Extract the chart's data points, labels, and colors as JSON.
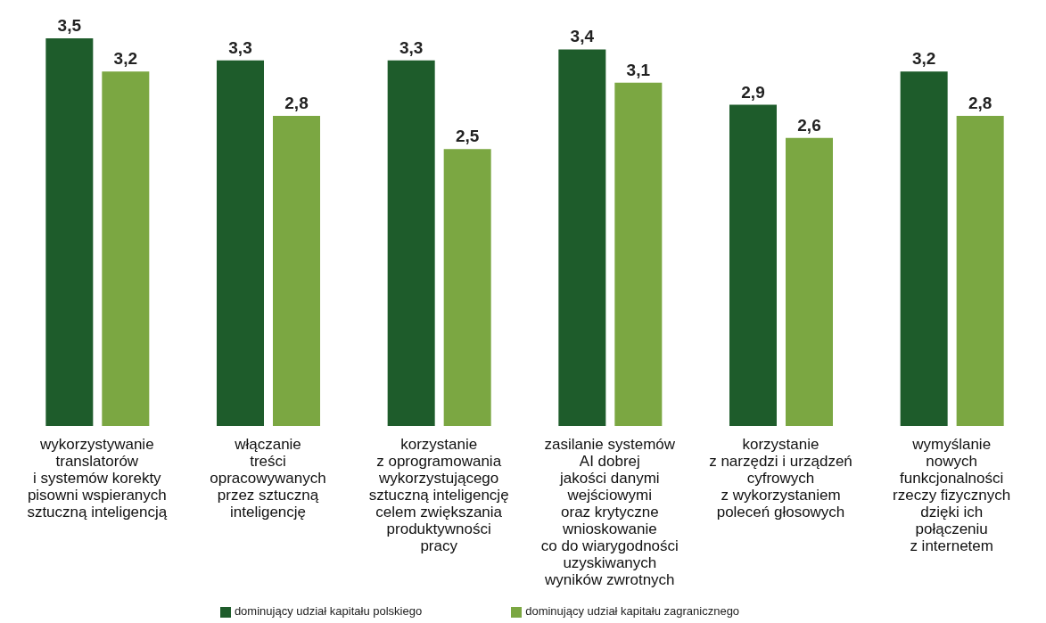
{
  "chart_data": {
    "type": "bar",
    "categories": [
      "wykorzystywanie\ntranslatorów\ni systemów korekty\npisowni wspieranych\nsztuczną inteligencją",
      "włączanie\ntreści\nopracowywanych\nprzez sztuczną\ninteligencję",
      "korzystanie\nz oprogramowania\nwykorzystującego\nsztuczną inteligencję\ncelem zwiększania\nproduktywności\npracy",
      "zasilanie systemów\nAI dobrej\njakości danymi\nwejściowymi\noraz krytyczne\nwnioskowanie\nco do wiarygodności\nuzyskiwanych\nwyników zwrotnych",
      "korzystanie\nz narzędzi i urządzeń\ncyfrowych\nz wykorzystaniem\npoleceń głosowych",
      "wymyślanie\nnowych\nfunkcjonalności\nrzeczy fizycznych\ndzięki ich\npołączeniu\nz internetem"
    ],
    "series": [
      {
        "name": "dominujący udział kapitału polskiego",
        "color": "#1e5c2b",
        "values": [
          3.5,
          3.3,
          3.3,
          3.4,
          2.9,
          3.2
        ],
        "value_labels": [
          "3,5",
          "3,3",
          "3,3",
          "3,4",
          "2,9",
          "3,2"
        ]
      },
      {
        "name": "dominujący udział kapitału zagranicznego",
        "color": "#7ba742",
        "values": [
          3.2,
          2.8,
          2.5,
          3.1,
          2.6,
          2.8
        ],
        "value_labels": [
          "3,2",
          "2,8",
          "2,5",
          "3,1",
          "2,6",
          "2,8"
        ]
      }
    ],
    "legend": "bottom",
    "grid": false
  }
}
